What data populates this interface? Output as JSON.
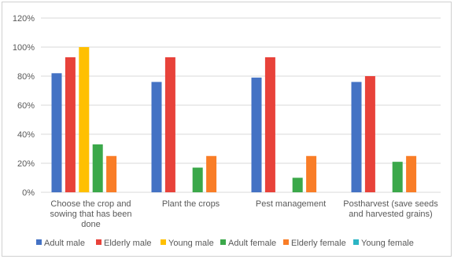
{
  "chart_data": {
    "type": "bar",
    "title": "",
    "xlabel": "",
    "ylabel": "",
    "ylim": [
      0,
      1.2
    ],
    "y_ticks": [
      "0%",
      "20%",
      "40%",
      "60%",
      "80%",
      "100%",
      "120%"
    ],
    "grid": "horizontal",
    "legend_position": "bottom",
    "categories": [
      [
        "Choose the crop and",
        "sowing that has been",
        "done"
      ],
      [
        "Plant the crops"
      ],
      [
        "Pest management"
      ],
      [
        "Postharvest (save seeds",
        "and harvested grains)"
      ]
    ],
    "series": [
      {
        "name": "Adult male",
        "color": "#4472C4",
        "values": [
          0.82,
          0.76,
          0.79,
          0.76
        ]
      },
      {
        "name": "Elderly male",
        "color": "#E8423A",
        "values": [
          0.93,
          0.93,
          0.93,
          0.8
        ]
      },
      {
        "name": "Young male",
        "color": "#FFC000",
        "values": [
          1.0,
          0,
          0,
          0
        ]
      },
      {
        "name": "Adult female",
        "color": "#3BA84A",
        "values": [
          0.33,
          0.17,
          0.1,
          0.21
        ]
      },
      {
        "name": "Elderly female",
        "color": "#F97D27",
        "values": [
          0.25,
          0.25,
          0.25,
          0.25
        ]
      },
      {
        "name": "Young female",
        "color": "#2CB5C4",
        "values": [
          0,
          0,
          0,
          0
        ]
      }
    ]
  }
}
